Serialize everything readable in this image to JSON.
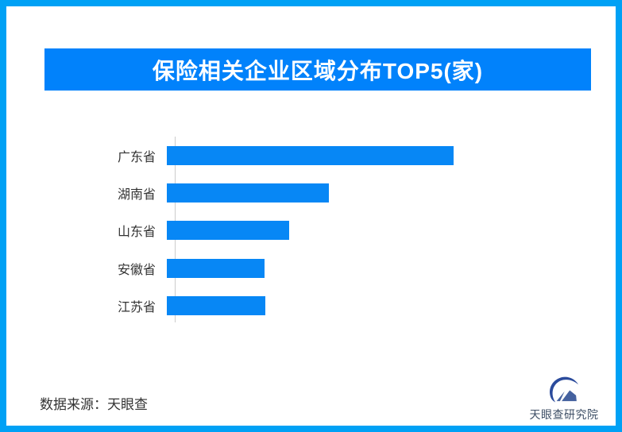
{
  "chart_data": {
    "type": "bar",
    "orientation": "horizontal",
    "title": "保险相关企业区域分布TOP5(家)",
    "categories": [
      "广东省",
      "湖南省",
      "山东省",
      "安徽省",
      "江苏省"
    ],
    "values_relative_pct": [
      100,
      56.5,
      42.7,
      34.1,
      34.4
    ],
    "value_labels_shown": false,
    "value_axis": "none",
    "legend": "none",
    "grid": "off"
  },
  "footer": {
    "source_note": "数据来源：天眼查",
    "logo_text": "天眼查研究院"
  },
  "colors": {
    "frame_border": "#00A1F5",
    "banner_bg": "#0182FB",
    "bar_fill": "#0787F5",
    "axis_line": "#CCCCCC",
    "text_dark": "#333333",
    "logo_blue_dark": "#2B4B9C",
    "logo_blue_light": "#44619F",
    "logo_text": "#3E4F66"
  }
}
